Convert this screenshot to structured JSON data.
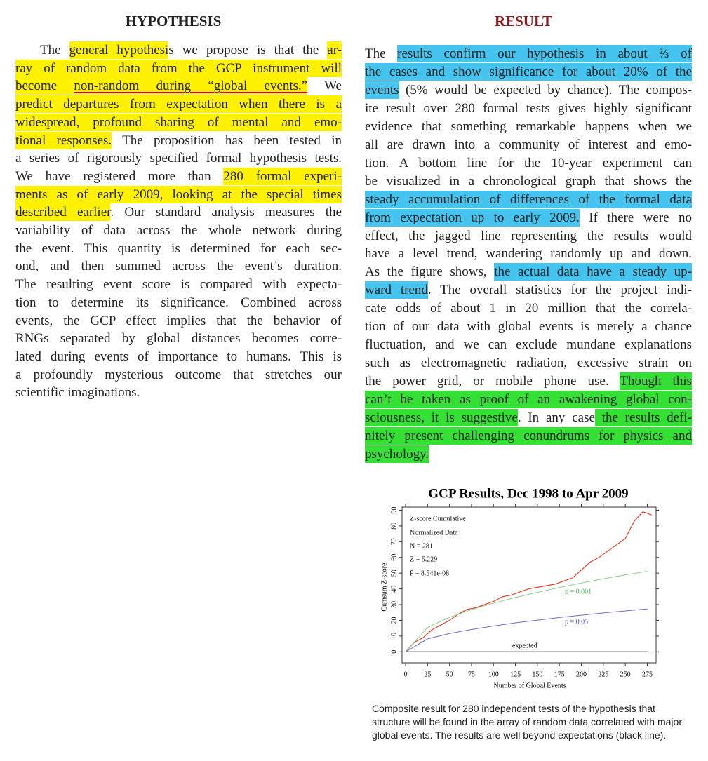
{
  "left": {
    "heading": "HYPOTHESIS",
    "lines": [
      [
        {
          "text": "The "
        },
        {
          "text": "general hypothesi",
          "highlight": "#fff200"
        },
        {
          "text": "s we propose is that the "
        },
        {
          "text": "ar-",
          "highlight": "#fff200"
        }
      ],
      [
        {
          "text": "ray of random data from the GCP instrument will",
          "highlight": "#fff200"
        }
      ],
      [
        {
          "text": "become ",
          "highlight": "#fff200"
        },
        {
          "text": "non-random during “global events.”",
          "highlight": "#fff200",
          "underline": "#d0021b"
        },
        {
          "text": " We"
        }
      ],
      [
        {
          "text": "predict departures from expectation when there is a",
          "highlight": "#fff200"
        }
      ],
      [
        {
          "text": "widespread, profound sharing of mental and emo-",
          "highlight": "#fff200"
        }
      ],
      [
        {
          "text": "tional responses.",
          "highlight": "#fff200"
        },
        {
          "text": " The proposition has been tested in"
        }
      ],
      [
        {
          "text": "a series of rigorously specified formal hypothesis tests."
        }
      ],
      [
        {
          "text": "We have registered more than "
        },
        {
          "text": "280 formal experi-",
          "highlight": "#fff200"
        }
      ],
      [
        {
          "text": "ments as of early 2009, looking at the special times",
          "highlight": "#fff200"
        }
      ],
      [
        {
          "text": "described earlier",
          "highlight": "#fff200"
        },
        {
          "text": ". Our standard analysis measures the"
        }
      ],
      [
        {
          "text": "variability of data across the whole network during"
        }
      ],
      [
        {
          "text": "the event. This quantity is determined for each sec-"
        }
      ],
      [
        {
          "text": "ond, and then summed across the event’s duration."
        }
      ],
      [
        {
          "text": "The resulting event score is compared with expecta-"
        }
      ],
      [
        {
          "text": "tion to determine its significance. Combined across"
        }
      ],
      [
        {
          "text": "events, the GCP effect implies that the behavior of"
        }
      ],
      [
        {
          "text": "RNGs separated by global distances becomes corre-"
        }
      ],
      [
        {
          "text": "lated during events of importance to humans. This is"
        }
      ],
      [
        {
          "text": "a profoundly mysterious outcome that stretches our"
        }
      ],
      [
        {
          "text": "scientific imaginations."
        }
      ]
    ]
  },
  "right": {
    "heading": "RESULT",
    "lines": [
      [
        {
          "text": "The "
        },
        {
          "text": "results confirm our hypothesis in about ⅔ of",
          "highlight": "#45c4ef"
        }
      ],
      [
        {
          "text": "the cases and show significance for about 20% of the",
          "highlight": "#45c4ef"
        }
      ],
      [
        {
          "text": "events",
          "highlight": "#45c4ef"
        },
        {
          "text": " (5% would be expected by chance). The compos-"
        }
      ],
      [
        {
          "text": "ite result over 280 formal tests gives highly significant"
        }
      ],
      [
        {
          "text": "evidence that something remarkable happens when we"
        }
      ],
      [
        {
          "text": "all are drawn into a community of interest and emo-"
        }
      ],
      [
        {
          "text": "tion. A bottom line for the 10-year experiment can"
        }
      ],
      [
        {
          "text": "be visualized in a chronological graph that shows the"
        }
      ],
      [
        {
          "text": "steady accumulation of differences of the formal data",
          "highlight": "#45c4ef"
        }
      ],
      [
        {
          "text": "from expectation up to early 2009.",
          "highlight": "#45c4ef"
        },
        {
          "text": " If there were no"
        }
      ],
      [
        {
          "text": "effect, the jagged line representing the results would"
        }
      ],
      [
        {
          "text": "have a level trend, wandering randomly up and down."
        }
      ],
      [
        {
          "text": "As the figure shows, "
        },
        {
          "text": "the actual data have a steady up-",
          "highlight": "#45c4ef"
        }
      ],
      [
        {
          "text": "ward trend",
          "highlight": "#45c4ef"
        },
        {
          "text": ". The overall statistics for the project indi-"
        }
      ],
      [
        {
          "text": "cate odds of about 1 in 20 million that the correla-"
        }
      ],
      [
        {
          "text": "tion of our data with global events is merely a chance"
        }
      ],
      [
        {
          "text": "fluctuation, and we can exclude mundane explanations"
        }
      ],
      [
        {
          "text": "such as electromagnetic radiation, excessive strain on"
        }
      ],
      [
        {
          "text": "the power grid, or mobile phone use. "
        },
        {
          "text": "Though this",
          "highlight": "#33e033"
        }
      ],
      [
        {
          "text": "can’t be taken as proof of an awakening global con-",
          "highlight": "#33e033"
        }
      ],
      [
        {
          "text": "sciousness, it is suggestive",
          "highlight": "#33e033"
        },
        {
          "text": ". In any case"
        },
        {
          "text": " the results defi-",
          "highlight": "#33e033"
        }
      ],
      [
        {
          "text": "nitely present challenging conundrums for physics and",
          "highlight": "#33e033"
        }
      ],
      [
        {
          "text": "psychology.",
          "highlight": "#33e033"
        }
      ]
    ]
  },
  "chart_data": {
    "type": "line",
    "title": "GCP Results, Dec 1998 to Apr 2009",
    "xlabel": "Number of Global Events",
    "ylabel": "Cumsum Z-score",
    "xlim": [
      -4,
      285
    ],
    "ylim": [
      -7,
      92
    ],
    "xticks": [
      0,
      25,
      50,
      75,
      100,
      125,
      150,
      175,
      200,
      225,
      250,
      275
    ],
    "yticks": [
      0,
      10,
      20,
      30,
      40,
      50,
      60,
      70,
      80,
      90
    ],
    "annotations": [
      "Z-score Cumulative",
      "Normalized Data",
      "N = 281",
      "Z = 5.229",
      "P = 8.541e-08",
      "p = 0.001",
      "p = 0.05",
      "expected"
    ],
    "series": [
      {
        "color": "#e0402a",
        "x": [
          0,
          10,
          20,
          30,
          40,
          50,
          60,
          70,
          80,
          90,
          100,
          110,
          120,
          130,
          140,
          150,
          160,
          170,
          180,
          190,
          200,
          210,
          220,
          230,
          240,
          250,
          260,
          270,
          280
        ],
        "values": [
          0,
          6,
          9,
          14,
          17,
          20,
          24,
          27,
          28,
          30,
          32,
          35,
          36,
          38,
          40,
          41,
          42,
          43,
          45,
          47,
          52,
          57,
          60,
          64,
          68,
          72,
          83,
          89,
          87
        ]
      },
      {
        "color": "#8fd08f",
        "x": [
          0,
          25,
          50,
          75,
          100,
          125,
          150,
          175,
          200,
          225,
          250,
          275
        ],
        "values": [
          0,
          15.5,
          21.9,
          26.8,
          30.9,
          34.5,
          37.8,
          40.9,
          43.7,
          46.4,
          48.9,
          51.2
        ]
      },
      {
        "color": "#6a6fd0",
        "x": [
          0,
          25,
          50,
          75,
          100,
          125,
          150,
          175,
          200,
          225,
          250,
          275
        ],
        "values": [
          0,
          8.2,
          11.6,
          14.2,
          16.4,
          18.4,
          20.1,
          21.8,
          23.3,
          24.7,
          26.0,
          27.3
        ]
      },
      {
        "color": "#111111",
        "x": [
          0,
          275
        ],
        "values": [
          0,
          0
        ]
      }
    ]
  },
  "caption": [
    "Composite result for 280 independent tests of the hypothesis that",
    "structure will be found in the array of random data correlated with major",
    "global events. The results are well beyond expectations (black line)."
  ]
}
